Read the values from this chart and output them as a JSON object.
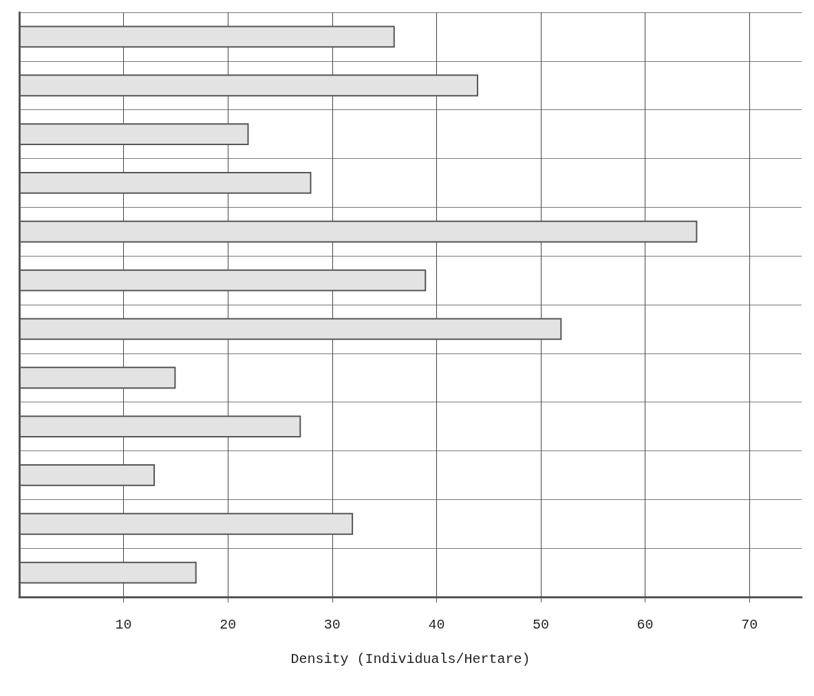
{
  "chart_data": {
    "type": "bar",
    "orientation": "horizontal",
    "xlabel": "Density (Individuals/Hertare)",
    "categories": [
      null,
      null,
      null,
      null,
      null,
      null,
      null,
      null,
      null,
      null,
      null,
      null
    ],
    "values": [
      36,
      44,
      22,
      28,
      65,
      39,
      52,
      15,
      27,
      13,
      32,
      17
    ],
    "color": "#e3e3e3",
    "xlim": [
      0,
      75
    ],
    "xticks": [
      10,
      20,
      30,
      40,
      50,
      60,
      70
    ],
    "grid": true
  }
}
